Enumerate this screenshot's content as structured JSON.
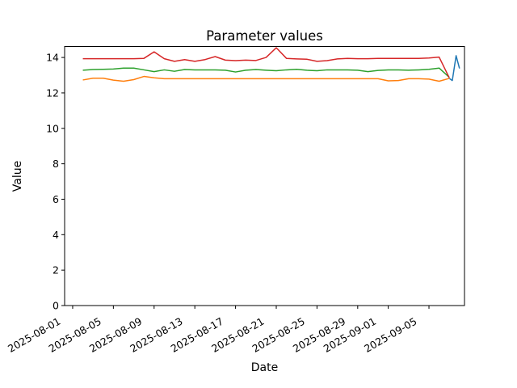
{
  "figure": {
    "background": "#ffffff"
  },
  "chart_data": {
    "type": "line",
    "title": "Parameter values",
    "xlabel": "Date",
    "ylabel": "Value",
    "grid": false,
    "legend": "none",
    "plot_bg": "#ffffff",
    "spine_color": "#000000",
    "ylim": [
      0,
      14.62
    ],
    "y_ticks": [
      0,
      2,
      4,
      6,
      8,
      10,
      12,
      14
    ],
    "xlim_days_after_2025_08_01": [
      -0.79,
      38.49
    ],
    "x_tick_rotation_deg": 30,
    "x_ticks": [
      {
        "label": "2025-08-01",
        "day": 0
      },
      {
        "label": "2025-08-05",
        "day": 4
      },
      {
        "label": "2025-08-09",
        "day": 8
      },
      {
        "label": "2025-08-13",
        "day": 12
      },
      {
        "label": "2025-08-17",
        "day": 16
      },
      {
        "label": "2025-08-21",
        "day": 20
      },
      {
        "label": "2025-08-25",
        "day": 24
      },
      {
        "label": "2025-08-29",
        "day": 28
      },
      {
        "label": "2025-09-01",
        "day": 31
      },
      {
        "label": "2025-09-05",
        "day": 35
      }
    ],
    "dates": [
      "2025-08-02",
      "2025-08-03",
      "2025-08-04",
      "2025-08-05",
      "2025-08-06",
      "2025-08-07",
      "2025-08-08",
      "2025-08-09",
      "2025-08-10",
      "2025-08-11",
      "2025-08-12",
      "2025-08-13",
      "2025-08-14",
      "2025-08-15",
      "2025-08-16",
      "2025-08-17",
      "2025-08-18",
      "2025-08-19",
      "2025-08-20",
      "2025-08-21",
      "2025-08-22",
      "2025-08-23",
      "2025-08-24",
      "2025-08-25",
      "2025-08-26",
      "2025-08-27",
      "2025-08-28",
      "2025-08-29",
      "2025-08-30",
      "2025-08-31",
      "2025-09-01",
      "2025-09-02",
      "2025-09-03",
      "2025-09-04",
      "2025-09-05",
      "2025-09-06",
      "2025-09-07"
    ],
    "series": [
      {
        "name": "series-blue",
        "color": "#1f77b4",
        "x": [
          "2025-09-07 00:00",
          "2025-09-07 07:00",
          "2025-09-07 16:00",
          "2025-09-08 00:00"
        ],
        "values": [
          12.82,
          12.7,
          14.1,
          13.38
        ]
      },
      {
        "name": "series-orange",
        "color": "#ff7f0e",
        "x": "dates",
        "values": [
          12.73,
          12.83,
          12.83,
          12.72,
          12.66,
          12.75,
          12.93,
          12.85,
          12.8,
          12.8,
          12.8,
          12.8,
          12.8,
          12.8,
          12.8,
          12.8,
          12.8,
          12.8,
          12.8,
          12.8,
          12.8,
          12.8,
          12.8,
          12.8,
          12.8,
          12.8,
          12.8,
          12.8,
          12.8,
          12.8,
          12.68,
          12.7,
          12.8,
          12.8,
          12.78,
          12.66,
          12.82
        ]
      },
      {
        "name": "series-green",
        "color": "#2ca02c",
        "x": "dates",
        "values": [
          13.28,
          13.32,
          13.33,
          13.35,
          13.4,
          13.4,
          13.3,
          13.2,
          13.3,
          13.22,
          13.32,
          13.3,
          13.3,
          13.3,
          13.28,
          13.18,
          13.28,
          13.32,
          13.28,
          13.25,
          13.3,
          13.33,
          13.28,
          13.25,
          13.3,
          13.3,
          13.3,
          13.28,
          13.2,
          13.27,
          13.3,
          13.3,
          13.28,
          13.3,
          13.33,
          13.4,
          12.88
        ]
      },
      {
        "name": "series-red",
        "color": "#d62728",
        "x": "dates",
        "values": [
          13.93,
          13.93,
          13.93,
          13.93,
          13.93,
          13.93,
          13.95,
          14.32,
          13.93,
          13.78,
          13.88,
          13.78,
          13.88,
          14.05,
          13.85,
          13.82,
          13.85,
          13.83,
          14.0,
          14.55,
          13.95,
          13.92,
          13.9,
          13.78,
          13.82,
          13.92,
          13.95,
          13.93,
          13.93,
          13.95,
          13.95,
          13.95,
          13.95,
          13.95,
          13.97,
          14.02,
          12.85
        ]
      }
    ]
  }
}
